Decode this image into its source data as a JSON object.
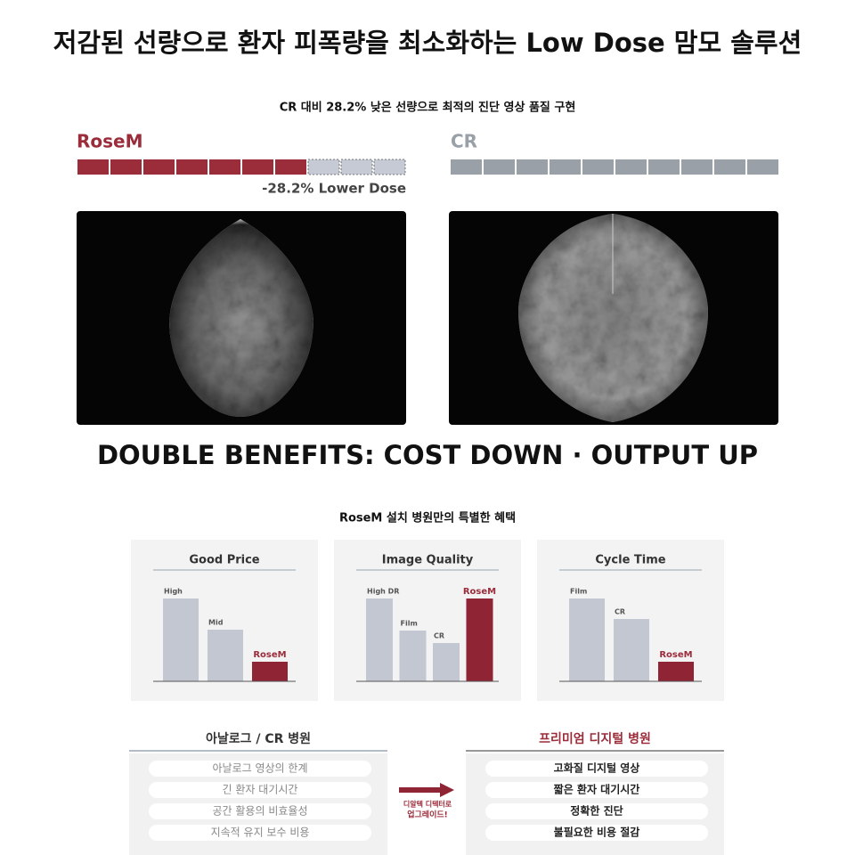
{
  "title": "저감된 선량으로 환자 피폭량을 최소화하는 Low Dose 맘모 솔루션",
  "dose": {
    "subtitle": "CR 대비 28.2% 낮은 선량으로 최적의 진단 영상 품질 구현",
    "rosem_label": "RoseM",
    "cr_label": "CR",
    "lower_dose": "-28.2% Lower Dose"
  },
  "benefits": {
    "heading": "DOUBLE BENEFITS: COST DOWN · OUTPUT UP",
    "subtitle": "RoseM 설치 병원만의 특별한 혜택",
    "panels": [
      {
        "title": "Good Price",
        "bars": [
          {
            "label": "High",
            "value": 93,
            "color": "#c2c7d1"
          },
          {
            "label": "Mid",
            "value": 58,
            "color": "#c2c7d1"
          },
          {
            "label": "RoseM",
            "value": 22,
            "color": "#8e2434"
          }
        ]
      },
      {
        "title": "Image Quality",
        "bars": [
          {
            "label": "High DR",
            "value": 93,
            "color": "#c2c7d1"
          },
          {
            "label": "Film",
            "value": 57,
            "color": "#c2c7d1"
          },
          {
            "label": "CR",
            "value": 43,
            "color": "#c2c7d1"
          },
          {
            "label": "RoseM",
            "value": 93,
            "color": "#8e2434"
          }
        ]
      },
      {
        "title": "Cycle Time",
        "bars": [
          {
            "label": "Film",
            "value": 93,
            "color": "#c2c7d1"
          },
          {
            "label": "CR",
            "value": 70,
            "color": "#c2c7d1"
          },
          {
            "label": "RoseM",
            "value": 22,
            "color": "#8e2434"
          }
        ]
      }
    ]
  },
  "comparison": {
    "left": {
      "title": "아날로그 / CR 병원",
      "items": [
        "아날로그 영상의 한계",
        "긴 환자 대기시간",
        "공간 활용의 비효율성",
        "지속적 유지 보수 비용"
      ]
    },
    "arrow_text": [
      "디알텍 디텍터로",
      "업그레이드!"
    ],
    "right": {
      "title": "프리미엄 디지털 병원",
      "items": [
        "고화질 디지털 영상",
        "짧은 환자 대기시간",
        "정확한 진단",
        "불필요한 비용 절감"
      ]
    }
  }
}
